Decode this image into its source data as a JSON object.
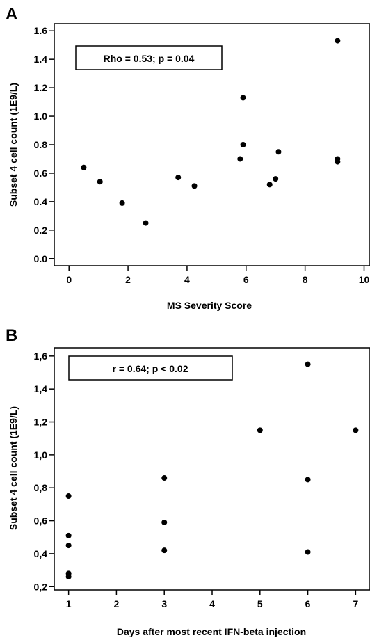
{
  "chart_data": [
    {
      "type": "scatter",
      "panel": "A",
      "xlabel": "MS Severity Score",
      "ylabel": "Subset 4 cell count (1E9/L)",
      "xlim": [
        -0.5,
        10.2
      ],
      "ylim": [
        -0.05,
        1.65
      ],
      "xticks": [
        0,
        2,
        4,
        6,
        8,
        10
      ],
      "xtick_labels": [
        "0",
        "2",
        "4",
        "6",
        "8",
        "10"
      ],
      "yticks": [
        0.0,
        0.2,
        0.4,
        0.6,
        0.8,
        1.0,
        1.2,
        1.4,
        1.6
      ],
      "ytick_labels": [
        "0.0",
        "0.2",
        "0.4",
        "0.6",
        "0.8",
        "1.0",
        "1.2",
        "1.4",
        "1.6"
      ],
      "annotation": "Rho = 0.53; p = 0.04",
      "grid": false,
      "points": [
        {
          "x": 0.5,
          "y": 0.64
        },
        {
          "x": 1.05,
          "y": 0.54
        },
        {
          "x": 1.8,
          "y": 0.39
        },
        {
          "x": 2.6,
          "y": 0.25
        },
        {
          "x": 3.7,
          "y": 0.57
        },
        {
          "x": 4.25,
          "y": 0.51
        },
        {
          "x": 5.8,
          "y": 0.7
        },
        {
          "x": 5.9,
          "y": 1.13
        },
        {
          "x": 5.9,
          "y": 0.8
        },
        {
          "x": 6.8,
          "y": 0.52
        },
        {
          "x": 7.0,
          "y": 0.56
        },
        {
          "x": 7.1,
          "y": 0.75
        },
        {
          "x": 9.1,
          "y": 1.53
        },
        {
          "x": 9.1,
          "y": 0.7
        },
        {
          "x": 9.1,
          "y": 0.68
        }
      ]
    },
    {
      "type": "scatter",
      "panel": "B",
      "xlabel": "Days after most recent IFN-beta injection",
      "ylabel": "Subset 4 cell count (1E9/L)",
      "xlim": [
        0.7,
        7.3
      ],
      "ylim": [
        0.18,
        1.65
      ],
      "xticks": [
        1,
        2,
        3,
        4,
        5,
        6,
        7
      ],
      "xtick_labels": [
        "1",
        "2",
        "3",
        "4",
        "5",
        "6",
        "7"
      ],
      "yticks": [
        0.2,
        0.4,
        0.6,
        0.8,
        1.0,
        1.2,
        1.4,
        1.6
      ],
      "ytick_labels": [
        "0,2",
        "0,4",
        "0,6",
        "0,8",
        "1,0",
        "1,2",
        "1,4",
        "1,6"
      ],
      "annotation": "r = 0.64; p < 0.02",
      "grid": false,
      "points": [
        {
          "x": 1,
          "y": 0.75
        },
        {
          "x": 1,
          "y": 0.51
        },
        {
          "x": 1,
          "y": 0.45
        },
        {
          "x": 1,
          "y": 0.28
        },
        {
          "x": 1,
          "y": 0.26
        },
        {
          "x": 3,
          "y": 0.86
        },
        {
          "x": 3,
          "y": 0.59
        },
        {
          "x": 3,
          "y": 0.42
        },
        {
          "x": 5,
          "y": 1.15
        },
        {
          "x": 6,
          "y": 1.55
        },
        {
          "x": 6,
          "y": 0.85
        },
        {
          "x": 6,
          "y": 0.41
        },
        {
          "x": 7,
          "y": 1.15
        }
      ]
    }
  ]
}
